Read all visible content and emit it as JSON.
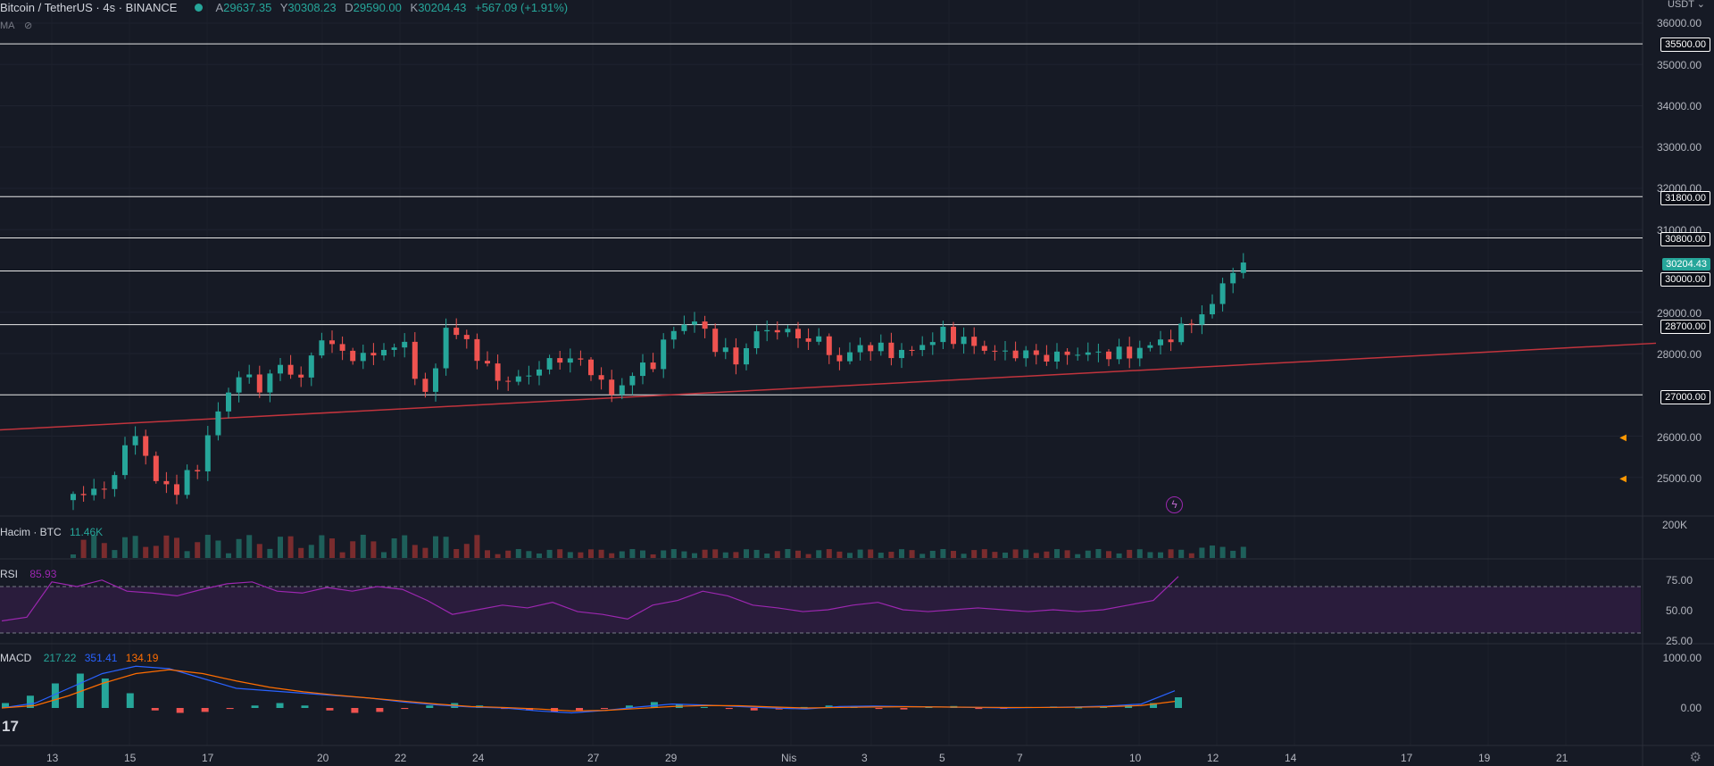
{
  "header": {
    "symbol": "Bitcoin / TetherUS · 4s · BINANCE",
    "ohlc": [
      {
        "k": "A",
        "v": "29637.35"
      },
      {
        "k": "Y",
        "v": "30308.23"
      },
      {
        "k": "D",
        "v": "29590.00"
      },
      {
        "k": "K",
        "v": "30204.43"
      }
    ],
    "change": "+567.09 (+1.91%)",
    "ma_label": "MA"
  },
  "currency": "USDT",
  "last_price": "30204.43",
  "volume": {
    "label": "Hacim · BTC",
    "value": "11.46K",
    "axis_label": "200K"
  },
  "rsi": {
    "label": "RSI",
    "value": "85.93",
    "axis": [
      "75.00",
      "50.00",
      "25.00"
    ]
  },
  "macd": {
    "label": "MACD",
    "v1": "217.22",
    "v2": "351.41",
    "v3": "134.19",
    "axis": [
      "1000.00",
      "0.00"
    ]
  },
  "price_axis": [
    "36000.00",
    "35000.00",
    "34000.00",
    "33000.00",
    "32000.00",
    "31000.00",
    "29000.00",
    "28000.00",
    "26000.00",
    "25000.00"
  ],
  "levels": [
    "35500.00",
    "31800.00",
    "30800.00",
    "30000.00",
    "28700.00",
    "27000.00"
  ],
  "time_axis": [
    "13",
    "15",
    "17",
    "20",
    "22",
    "24",
    "27",
    "29",
    "Nis",
    "3",
    "5",
    "7",
    "10",
    "12",
    "14",
    "17",
    "19",
    "21"
  ],
  "colors": {
    "bg": "#161a25",
    "up": "#26a69a",
    "down": "#ef5350",
    "rsi": "#9c27b0",
    "macd": "#2962ff",
    "signal": "#ff6d00",
    "trend": "#c2343d"
  },
  "chart_data": {
    "type": "candlestick",
    "title": "Bitcoin / TetherUS · 4s · BINANCE",
    "ylim": [
      24000,
      36500
    ],
    "x_range_days": [
      "13",
      "21"
    ],
    "horizontal_levels": [
      35500,
      31800,
      30800,
      30000,
      28700,
      27000
    ],
    "trendline": {
      "start_price": 26150,
      "end_price": 28250
    },
    "price_anchors": [
      [
        0,
        24600
      ],
      [
        3,
        24700
      ],
      [
        6,
        26100
      ],
      [
        8,
        24900
      ],
      [
        10,
        24700
      ],
      [
        12,
        25300
      ],
      [
        14,
        26600
      ],
      [
        16,
        27500
      ],
      [
        18,
        27200
      ],
      [
        20,
        27700
      ],
      [
        22,
        27400
      ],
      [
        24,
        28400
      ],
      [
        26,
        28000
      ],
      [
        28,
        27900
      ],
      [
        30,
        28100
      ],
      [
        32,
        28200
      ],
      [
        34,
        26900
      ],
      [
        36,
        28600
      ],
      [
        38,
        28300
      ],
      [
        40,
        27600
      ],
      [
        42,
        27300
      ],
      [
        44,
        27500
      ],
      [
        46,
        27800
      ],
      [
        48,
        27900
      ],
      [
        50,
        27600
      ],
      [
        52,
        27000
      ],
      [
        54,
        27500
      ],
      [
        56,
        27800
      ],
      [
        58,
        28600
      ],
      [
        60,
        28800
      ],
      [
        62,
        28200
      ],
      [
        64,
        27800
      ],
      [
        66,
        28500
      ],
      [
        68,
        28600
      ],
      [
        70,
        28400
      ],
      [
        72,
        28300
      ],
      [
        74,
        27800
      ],
      [
        76,
        28200
      ],
      [
        78,
        28100
      ],
      [
        80,
        28000
      ],
      [
        82,
        28200
      ],
      [
        84,
        28500
      ],
      [
        86,
        28300
      ],
      [
        88,
        28100
      ],
      [
        90,
        28000
      ],
      [
        92,
        28000
      ],
      [
        94,
        27900
      ],
      [
        96,
        28000
      ],
      [
        98,
        28000
      ],
      [
        100,
        28000
      ],
      [
        102,
        28000
      ],
      [
        104,
        28200
      ],
      [
        106,
        28400
      ],
      [
        108,
        28700
      ],
      [
        110,
        29200
      ],
      [
        111,
        29700
      ],
      [
        113,
        30204.43
      ]
    ],
    "rsi_values": [
      38,
      42,
      80,
      75,
      82,
      70,
      68,
      65,
      72,
      78,
      80,
      70,
      68,
      74,
      70,
      75,
      72,
      60,
      45,
      50,
      55,
      52,
      58,
      48,
      45,
      40,
      55,
      60,
      70,
      65,
      55,
      52,
      48,
      50,
      55,
      58,
      50,
      48,
      50,
      52,
      50,
      48,
      50,
      48,
      50,
      55,
      60,
      85.93
    ],
    "macd_histogram": [
      100,
      250,
      500,
      700,
      600,
      300,
      -50,
      -100,
      -80,
      -20,
      50,
      100,
      50,
      -50,
      -100,
      -80,
      -20,
      50,
      100,
      50,
      -20,
      -50,
      -80,
      -50,
      -20,
      50,
      120,
      80,
      20,
      -20,
      -50,
      -30,
      20,
      50,
      40,
      -20,
      -30,
      20,
      40,
      -20,
      -10,
      20,
      30,
      10,
      30,
      60,
      100,
      217.22
    ],
    "macd_line": [
      0,
      100,
      400,
      700,
      850,
      800,
      600,
      400,
      350,
      300,
      250,
      200,
      120,
      60,
      20,
      0,
      -60,
      -100,
      -50,
      20,
      80,
      60,
      30,
      0,
      -20,
      30,
      40,
      30,
      20,
      10,
      0,
      10,
      20,
      40,
      80,
      351.41
    ],
    "signal_line": [
      0,
      50,
      250,
      500,
      700,
      780,
      700,
      550,
      420,
      330,
      260,
      200,
      140,
      80,
      30,
      10,
      -20,
      -60,
      -50,
      -10,
      30,
      50,
      45,
      20,
      0,
      10,
      20,
      25,
      20,
      15,
      10,
      10,
      15,
      25,
      50,
      134.19
    ]
  }
}
